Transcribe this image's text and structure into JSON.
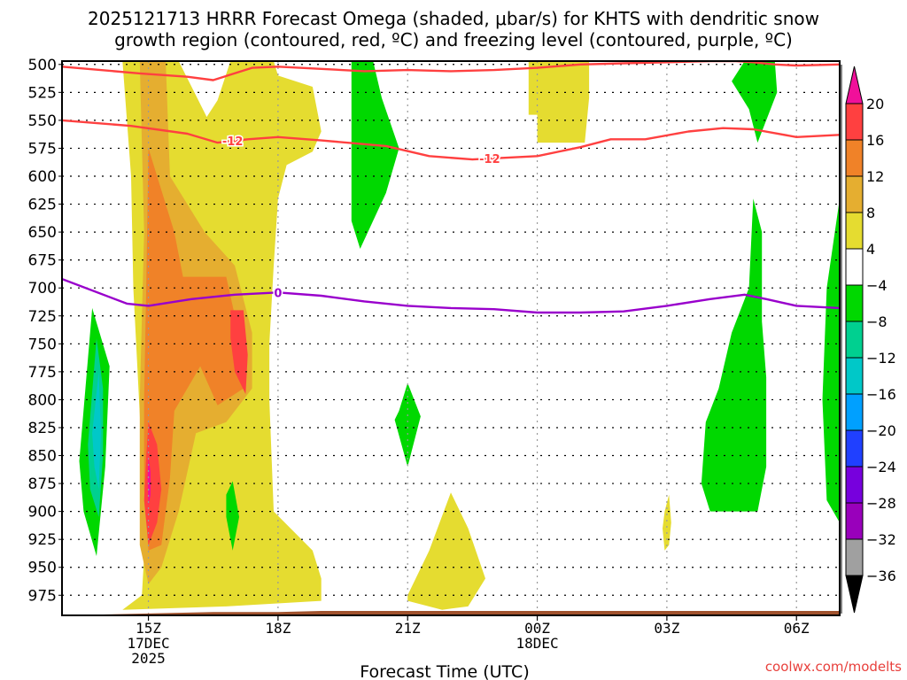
{
  "chart_data": {
    "type": "heatmap",
    "title_line1": "2025121713 HRRR Forecast Omega (shaded, μbar/s) for KHTS with dendritic snow",
    "title_line2": "growth region (contoured, red, ºC) and freezing level (contoured, purple, ºC)",
    "xlabel": "Forecast Time (UTC)",
    "ylabel": "",
    "credit": "coolwx.com/modelts",
    "x_range_hours": [
      13.0,
      31.0
    ],
    "x_ticks": [
      {
        "hour": 15,
        "lines": [
          "15Z",
          "17DEC",
          "2025"
        ]
      },
      {
        "hour": 18,
        "lines": [
          "18Z"
        ]
      },
      {
        "hour": 21,
        "lines": [
          "21Z"
        ]
      },
      {
        "hour": 24,
        "lines": [
          "00Z",
          "18DEC"
        ]
      },
      {
        "hour": 27,
        "lines": [
          "03Z"
        ]
      },
      {
        "hour": 30,
        "lines": [
          "06Z"
        ]
      }
    ],
    "y_range_hpa": [
      497,
      993
    ],
    "y_ticks": [
      500,
      525,
      550,
      575,
      600,
      625,
      650,
      675,
      700,
      725,
      750,
      775,
      800,
      825,
      850,
      875,
      900,
      925,
      950,
      975
    ],
    "grid": true,
    "colorbar": {
      "levels": [
        -36,
        -32,
        -28,
        -24,
        -20,
        -16,
        -12,
        -8,
        -4,
        4,
        8,
        12,
        16,
        20
      ],
      "colors": [
        "#a0a0a0",
        "#9900bb",
        "#7700dd",
        "#2040ff",
        "#00a0ff",
        "#00c8c8",
        "#00d090",
        "#00d800",
        "#ffffff",
        "#e5dc30",
        "#e5ae30",
        "#f08228",
        "#ff4040"
      ],
      "under_color": "#000000",
      "over_color": "#f0109a",
      "tick_labels": [
        "20",
        "16",
        "12",
        "8",
        "4",
        "-4",
        "-8",
        "-12",
        "-16",
        "-20",
        "-24",
        "-28",
        "-32",
        "-36"
      ]
    },
    "shaded_regions": [
      {
        "value_class": "4..8",
        "color": "#e5dc30",
        "points": [
          [
            14.45,
            497
          ],
          [
            15.1,
            497
          ],
          [
            15.3,
            497
          ],
          [
            15.7,
            497
          ],
          [
            16.0,
            520
          ],
          [
            16.35,
            547
          ],
          [
            16.6,
            532
          ],
          [
            16.9,
            497
          ],
          [
            17.9,
            497
          ],
          [
            18.0,
            510
          ],
          [
            18.8,
            520
          ],
          [
            19.0,
            560
          ],
          [
            18.8,
            578
          ],
          [
            18.2,
            590
          ],
          [
            18.0,
            620
          ],
          [
            17.9,
            680
          ],
          [
            17.8,
            750
          ],
          [
            17.8,
            800
          ],
          [
            17.9,
            900
          ],
          [
            18.8,
            935
          ],
          [
            19.0,
            960
          ],
          [
            19.0,
            980
          ],
          [
            16.8,
            985
          ],
          [
            14.4,
            988
          ],
          [
            14.85,
            975
          ],
          [
            14.9,
            940
          ],
          [
            14.85,
            850
          ],
          [
            14.65,
            700
          ],
          [
            14.6,
            600
          ],
          [
            14.4,
            497
          ]
        ]
      },
      {
        "value_class": "4..8",
        "color": "#e5dc30",
        "points": [
          [
            23.8,
            497
          ],
          [
            25.2,
            497
          ],
          [
            25.2,
            530
          ],
          [
            25.1,
            570
          ],
          [
            24.0,
            570
          ],
          [
            24.0,
            545
          ],
          [
            23.8,
            545
          ],
          [
            23.8,
            497
          ]
        ]
      },
      {
        "value_class": "4..8",
        "color": "#e5dc30",
        "points": [
          [
            21.0,
            975
          ],
          [
            21.5,
            935
          ],
          [
            22.0,
            883
          ],
          [
            22.4,
            915
          ],
          [
            22.8,
            960
          ],
          [
            22.4,
            985
          ],
          [
            21.8,
            988
          ],
          [
            21.0,
            980
          ]
        ]
      },
      {
        "value_class": "4..8",
        "color": "#e5dc30",
        "points": [
          [
            26.95,
            900
          ],
          [
            27.05,
            885
          ],
          [
            27.1,
            910
          ],
          [
            27.05,
            930
          ],
          [
            26.95,
            935
          ],
          [
            26.9,
            915
          ]
        ]
      },
      {
        "value_class": "8..12",
        "color": "#e5ae30",
        "points": [
          [
            14.8,
            497
          ],
          [
            15.4,
            497
          ],
          [
            15.5,
            600
          ],
          [
            16.3,
            650
          ],
          [
            17.0,
            680
          ],
          [
            17.4,
            740
          ],
          [
            17.4,
            790
          ],
          [
            16.8,
            820
          ],
          [
            16.1,
            830
          ],
          [
            15.7,
            900
          ],
          [
            15.3,
            950
          ],
          [
            15.0,
            965
          ],
          [
            14.8,
            930
          ],
          [
            14.8,
            800
          ],
          [
            14.9,
            650
          ],
          [
            14.8,
            497
          ]
        ]
      },
      {
        "value_class": "12..16",
        "color": "#f08228",
        "points": [
          [
            15.0,
            575
          ],
          [
            15.6,
            650
          ],
          [
            15.8,
            690
          ],
          [
            16.8,
            690
          ],
          [
            17.2,
            760
          ],
          [
            17.2,
            790
          ],
          [
            16.6,
            805
          ],
          [
            16.2,
            770
          ],
          [
            15.6,
            810
          ],
          [
            15.5,
            870
          ],
          [
            15.3,
            930
          ],
          [
            15.0,
            935
          ],
          [
            14.9,
            880
          ],
          [
            14.9,
            800
          ],
          [
            14.95,
            700
          ],
          [
            15.0,
            575
          ]
        ]
      },
      {
        "value_class": "16..20",
        "color": "#ff4040",
        "points": [
          [
            16.9,
            720
          ],
          [
            17.2,
            720
          ],
          [
            17.3,
            760
          ],
          [
            17.25,
            795
          ],
          [
            17.0,
            775
          ],
          [
            16.9,
            745
          ]
        ]
      },
      {
        "value_class": "16..20",
        "color": "#ff4040",
        "points": [
          [
            15.0,
            820
          ],
          [
            15.2,
            840
          ],
          [
            15.3,
            880
          ],
          [
            15.2,
            910
          ],
          [
            15.0,
            930
          ],
          [
            14.9,
            890
          ],
          [
            14.95,
            850
          ]
        ]
      },
      {
        "value_class": ">20",
        "color": "#f0109a",
        "points": [
          [
            15.0,
            850
          ],
          [
            15.05,
            865
          ],
          [
            15.05,
            885
          ],
          [
            15.0,
            895
          ],
          [
            14.98,
            870
          ]
        ]
      },
      {
        "value_class": "-8..-4",
        "color": "#00d800",
        "points": [
          [
            19.7,
            497
          ],
          [
            20.2,
            497
          ],
          [
            20.4,
            530
          ],
          [
            20.8,
            575
          ],
          [
            20.5,
            615
          ],
          [
            19.9,
            665
          ],
          [
            19.7,
            640
          ],
          [
            19.7,
            497
          ]
        ]
      },
      {
        "value_class": "-8..-4",
        "color": "#00d800",
        "points": [
          [
            20.8,
            810
          ],
          [
            21.0,
            785
          ],
          [
            21.3,
            815
          ],
          [
            21.0,
            860
          ],
          [
            20.7,
            818
          ]
        ]
      },
      {
        "value_class": "-8..-4",
        "color": "#00d800",
        "points": [
          [
            16.8,
            885
          ],
          [
            16.95,
            873
          ],
          [
            17.1,
            905
          ],
          [
            16.95,
            935
          ],
          [
            16.8,
            905
          ]
        ]
      },
      {
        "value_class": "-8..-4",
        "color": "#00d800",
        "points": [
          [
            13.4,
            855
          ],
          [
            13.7,
            718
          ],
          [
            14.1,
            770
          ],
          [
            14.0,
            860
          ],
          [
            13.8,
            940
          ],
          [
            13.5,
            900
          ]
        ]
      },
      {
        "value_class": "-12..-8",
        "color": "#00d090",
        "points": [
          [
            13.6,
            840
          ],
          [
            13.8,
            745
          ],
          [
            13.95,
            790
          ],
          [
            13.95,
            850
          ],
          [
            13.85,
            905
          ],
          [
            13.65,
            880
          ]
        ]
      },
      {
        "value_class": "-16..-12",
        "color": "#00c8c8",
        "points": [
          [
            13.7,
            830
          ],
          [
            13.85,
            775
          ],
          [
            13.9,
            830
          ],
          [
            13.85,
            880
          ],
          [
            13.75,
            860
          ]
        ]
      },
      {
        "value_class": "-8..-4",
        "color": "#00d800",
        "points": [
          [
            28.8,
            497
          ],
          [
            29.5,
            497
          ],
          [
            29.55,
            525
          ],
          [
            29.1,
            570
          ],
          [
            28.9,
            540
          ],
          [
            28.5,
            515
          ],
          [
            28.8,
            497
          ]
        ]
      },
      {
        "value_class": "-8..-4",
        "color": "#00d800",
        "points": [
          [
            28.9,
            700
          ],
          [
            29.0,
            620
          ],
          [
            29.2,
            650
          ],
          [
            29.2,
            730
          ],
          [
            29.3,
            780
          ],
          [
            29.3,
            860
          ],
          [
            29.1,
            900
          ],
          [
            28.0,
            900
          ],
          [
            27.8,
            875
          ],
          [
            27.9,
            820
          ],
          [
            28.2,
            790
          ],
          [
            28.5,
            740
          ],
          [
            28.9,
            700
          ]
        ]
      },
      {
        "value_class": "-8..-4",
        "color": "#00d800",
        "points": [
          [
            31.0,
            620
          ],
          [
            31.0,
            910
          ],
          [
            30.7,
            890
          ],
          [
            30.6,
            800
          ],
          [
            30.7,
            700
          ],
          [
            31.0,
            620
          ]
        ]
      }
    ],
    "contours": [
      {
        "name": "dgz-upper",
        "kind": "dendritic snow growth (-12..-18 C)",
        "color": "#ff4040",
        "points": [
          [
            13.0,
            502
          ],
          [
            14.8,
            508
          ],
          [
            15.9,
            511
          ],
          [
            16.5,
            514
          ],
          [
            17.4,
            503
          ],
          [
            18.0,
            502
          ],
          [
            19.0,
            504
          ],
          [
            20.0,
            506
          ],
          [
            21.0,
            505
          ],
          [
            22.0,
            506
          ],
          [
            23.0,
            505
          ],
          [
            24.0,
            503
          ],
          [
            25.0,
            500
          ],
          [
            26.0,
            499
          ],
          [
            27.0,
            498
          ],
          [
            28.0,
            497
          ],
          [
            28.6,
            497
          ],
          [
            29.0,
            498
          ],
          [
            29.5,
            500
          ],
          [
            30.0,
            501
          ],
          [
            31.0,
            500
          ]
        ]
      },
      {
        "name": "dgz-lower",
        "label": "-12",
        "label_at_hour": 16.95,
        "label2_at_hour": 22.9,
        "color": "#ff4040",
        "points": [
          [
            13.0,
            550
          ],
          [
            14.6,
            555
          ],
          [
            15.9,
            562
          ],
          [
            16.6,
            570
          ],
          [
            17.3,
            567
          ],
          [
            18.0,
            565
          ],
          [
            19.0,
            568
          ],
          [
            20.5,
            573
          ],
          [
            21.5,
            582
          ],
          [
            22.5,
            585
          ],
          [
            23.0,
            584
          ],
          [
            24.0,
            582
          ],
          [
            25.0,
            574
          ],
          [
            25.7,
            567
          ],
          [
            26.5,
            567
          ],
          [
            27.5,
            560
          ],
          [
            28.3,
            557
          ],
          [
            29.0,
            558
          ],
          [
            30.0,
            565
          ],
          [
            31.0,
            563
          ]
        ]
      },
      {
        "name": "freezing-level",
        "label": "0",
        "label_at_hour": 18.0,
        "color": "#9900cc",
        "points": [
          [
            13.0,
            692
          ],
          [
            14.5,
            714
          ],
          [
            15.0,
            716
          ],
          [
            16.0,
            710
          ],
          [
            17.0,
            706
          ],
          [
            18.0,
            704
          ],
          [
            19.0,
            707
          ],
          [
            20.0,
            712
          ],
          [
            21.0,
            716
          ],
          [
            22.0,
            718
          ],
          [
            23.0,
            719
          ],
          [
            24.0,
            722
          ],
          [
            25.0,
            722
          ],
          [
            26.0,
            721
          ],
          [
            27.0,
            716
          ],
          [
            28.0,
            710
          ],
          [
            28.8,
            706
          ],
          [
            29.3,
            710
          ],
          [
            30.0,
            716
          ],
          [
            31.0,
            718
          ]
        ]
      }
    ],
    "ground": {
      "color": "#a0522d",
      "points": [
        [
          13.0,
          993
        ],
        [
          16.5,
          990
        ],
        [
          18.0,
          990
        ],
        [
          19.0,
          989
        ],
        [
          31.0,
          989
        ]
      ]
    }
  }
}
